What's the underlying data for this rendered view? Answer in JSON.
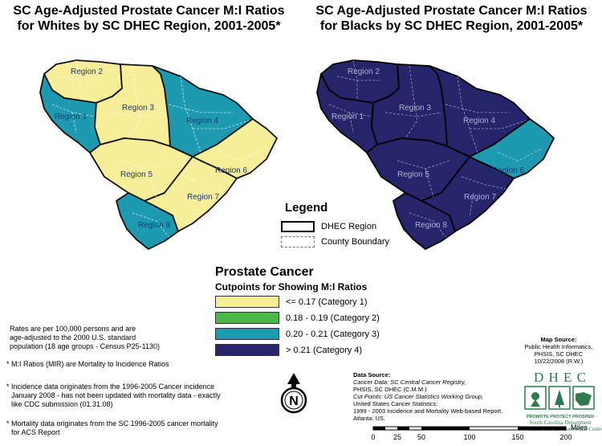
{
  "titles": {
    "left_line1": "SC Age-Adjusted Prostate Cancer M:I Ratios",
    "left_line2": "for Whites by SC DHEC Region, 2001-2005*",
    "right_line1": "SC Age-Adjusted Prostate Cancer M:I Ratios",
    "right_line2": "for Blacks by SC DHEC Region, 2001-2005*"
  },
  "regions": {
    "r1": "Region 1",
    "r2": "Region 2",
    "r3": "Region 3",
    "r4": "Region 4",
    "r5": "Region 5",
    "r6": "Region 6",
    "r7": "Region 7",
    "r8": "Region 8"
  },
  "colors": {
    "cat1": "#f7ee9a",
    "cat2": "#4cb848",
    "cat3": "#1e9ab0",
    "cat4": "#26246b"
  },
  "map_data": {
    "whites": {
      "Region 1": "cat3",
      "Region 2": "cat1",
      "Region 3": "cat1",
      "Region 4": "cat3",
      "Region 5": "cat1",
      "Region 6": "cat1",
      "Region 7": "cat1",
      "Region 8": "cat3"
    },
    "blacks": {
      "Region 1": "cat4",
      "Region 2": "cat4",
      "Region 3": "cat4",
      "Region 4": "cat4",
      "Region 5": "cat4",
      "Region 6": "cat3",
      "Region 7": "cat4",
      "Region 8": "cat4"
    }
  },
  "legend": {
    "title": "Legend",
    "dhec_region": "DHEC Region",
    "county_boundary": "County Boundary"
  },
  "prostate": {
    "title": "Prostate Cancer",
    "subtitle": "Cutpoints for Showing M:I Ratios",
    "categories": [
      "<= 0.17 (Category 1)",
      "0.18 - 0.19 (Category 2)",
      "0.20 - 0.21 (Category 3)",
      "> 0.21 (Category 4)"
    ]
  },
  "notes": {
    "rates_1": "Rates are per 100,000 persons and are",
    "rates_2": "age-adjusted to the 2000 U.S. standard",
    "rates_3": "population (18 age groups - Census P25-1130)",
    "mir": "M:I Ratios (MIR) are Mortality to Incidence Ratios",
    "inc_1": "Incidence data originates from the 1996-2005 Cancer incidence",
    "inc_2": "January 2008 - has not been updated with mortality data - exactly",
    "inc_3": "like CDC submission  (01.31.08)",
    "mort_1": "Mortality data originates from the SC 1996-2005 cancer mortality",
    "mort_2": "for ACS Report"
  },
  "data_source": {
    "label": "Data Source:",
    "l1": "Cancer Data: SC Central Cancer Registry,",
    "l2": "PHSIS, SC DHEC (C.M.M.)",
    "l3": "Cut Points: US Cancer Statistics Working Group,",
    "l4": "United States Cancer Statistics:",
    "l5": "1999 - 2003 Incidence and Mortality Web-based Report.",
    "l6": "Atlanta: US."
  },
  "map_source": {
    "label": "Map Source:",
    "l1": "Public Health Informatics,",
    "l2": "PHSIS, SC DHEC",
    "l3": "10/22/2008 (R.W.)"
  },
  "dhec": {
    "name": "D H E C",
    "motto": "PROMOTE PROTECT PROSPER",
    "agency_1": "South Carolina Department",
    "agency_2": "of Health and Environmental Control"
  },
  "north": {
    "letter": "N"
  },
  "scale": {
    "unit": "Miles",
    "ticks": [
      "0",
      "25",
      "50",
      "100",
      "150",
      "200"
    ]
  }
}
